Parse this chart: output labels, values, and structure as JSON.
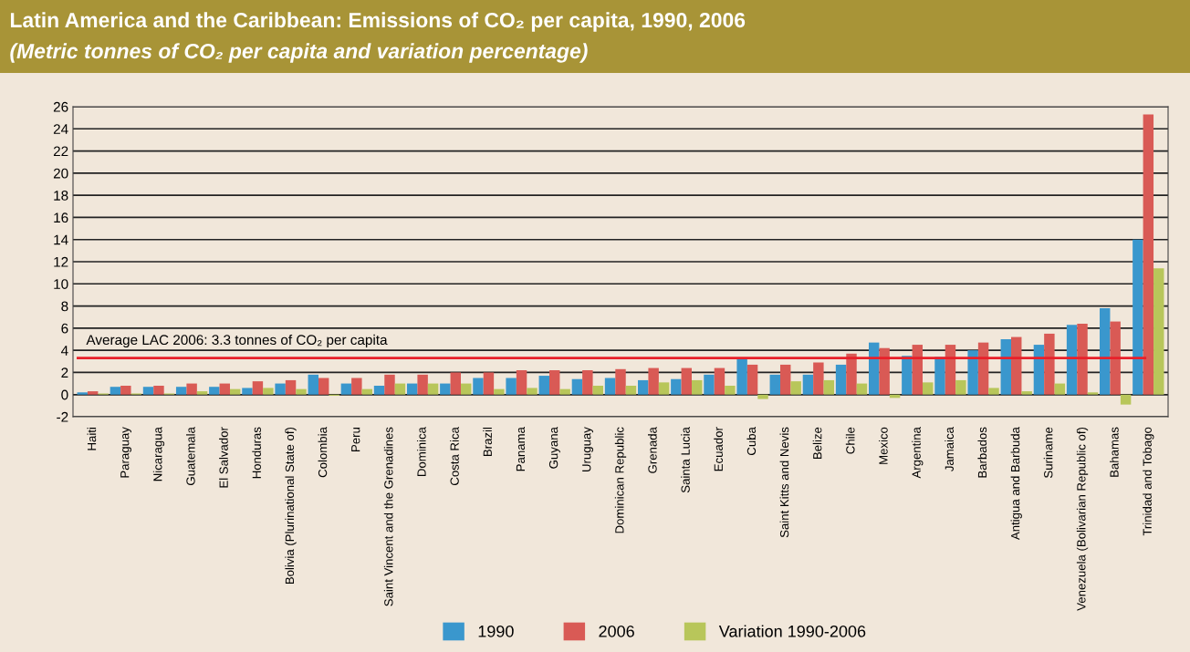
{
  "chart_data": {
    "type": "bar",
    "title": "Latin America and the Caribbean: Emissions of CO₂ per capita, 1990, 2006",
    "subtitle": "(Metric tonnes of CO₂ per capita and variation percentage)",
    "categories": [
      "Haiti",
      "Paraguay",
      "Nicaragua",
      "Guatemala",
      "El Salvador",
      "Honduras",
      "Bolivia (Plurinational State of)",
      "Colombia",
      "Peru",
      "Saint Vincent and the Grenadines",
      "Dominica",
      "Costa Rica",
      "Brazil",
      "Panama",
      "Guyana",
      "Uruguay",
      "Dominican Republic",
      "Grenada",
      "Sainta Lucia",
      "Ecuador",
      "Cuba",
      "Saint Kitts and Nevis",
      "Belize",
      "Chile",
      "Mexico",
      "Argentina",
      "Jamaica",
      "Barbados",
      "Antigua and Barbuda",
      "Suriname",
      "Venezuela (Bolivarian Republic of)",
      "Bahamas",
      "Trinidad and Tobago"
    ],
    "series": [
      {
        "name": "1990",
        "color": "#3a97cd",
        "values": [
          0.2,
          0.7,
          0.7,
          0.7,
          0.7,
          0.6,
          1.0,
          1.8,
          1.0,
          0.8,
          1.0,
          1.0,
          1.5,
          1.5,
          1.7,
          1.4,
          1.5,
          1.3,
          1.4,
          1.8,
          3.2,
          1.8,
          1.8,
          2.7,
          4.7,
          3.5,
          3.4,
          4.0,
          5.0,
          4.5,
          6.3,
          7.8,
          14.0
        ]
      },
      {
        "name": "2006",
        "color": "#d95a55",
        "values": [
          0.3,
          0.8,
          0.8,
          1.0,
          1.0,
          1.2,
          1.3,
          1.5,
          1.5,
          1.8,
          1.8,
          2.0,
          2.0,
          2.2,
          2.2,
          2.2,
          2.3,
          2.4,
          2.4,
          2.4,
          2.7,
          2.7,
          2.9,
          3.7,
          4.2,
          4.5,
          4.5,
          4.7,
          5.2,
          5.5,
          6.4,
          6.6,
          25.3
        ]
      },
      {
        "name": "Variation 1990-2006",
        "color": "#b8c65a",
        "values": [
          0.1,
          0.1,
          0.1,
          0.3,
          0.5,
          0.6,
          0.5,
          -0.1,
          0.5,
          1.0,
          1.0,
          1.0,
          0.5,
          0.6,
          0.5,
          0.8,
          0.8,
          1.1,
          1.3,
          0.8,
          -0.4,
          1.2,
          1.3,
          1.0,
          -0.3,
          1.1,
          1.3,
          0.6,
          0.3,
          1.0,
          0.2,
          -0.9,
          11.4
        ]
      }
    ],
    "ylim": [
      -2,
      26
    ],
    "yticks": [
      -2,
      0,
      2,
      4,
      6,
      8,
      10,
      12,
      14,
      16,
      18,
      20,
      22,
      24,
      26
    ],
    "ref_lines": [
      {
        "axis": "y",
        "value": 3.3,
        "label": "Average LAC 2006: 3.3 tonnes of CO₂ per capita",
        "color": "#e8202a"
      }
    ],
    "grid": "y",
    "legend": "bottom"
  }
}
